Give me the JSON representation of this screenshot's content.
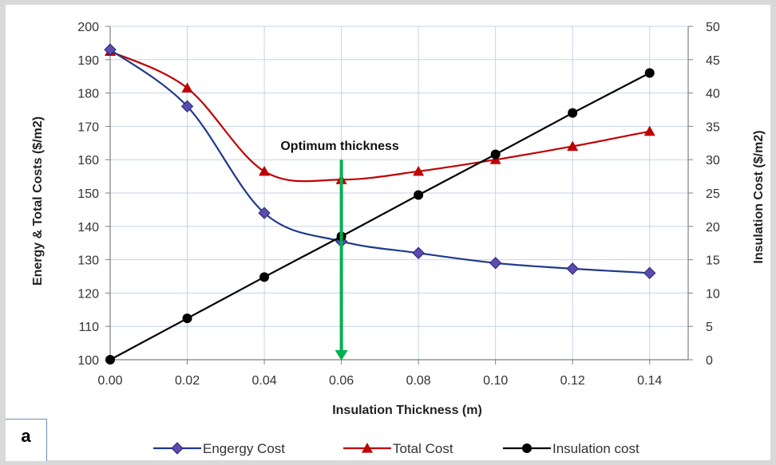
{
  "chart_data": {
    "type": "line",
    "panel_label": "a",
    "xlabel": "Insulation Thickness (m)",
    "ylabel": "Energy & Total Costs ($/m2)",
    "y2label": "Insulation Cost ($/m2)",
    "x": [
      0.0,
      0.02,
      0.04,
      0.06,
      0.08,
      0.1,
      0.12,
      0.14
    ],
    "x_tick_labels": [
      "0.00",
      "0.02",
      "0.04",
      "0.06",
      "0.08",
      "0.10",
      "0.12",
      "0.14"
    ],
    "xlim": [
      0.0,
      0.15
    ],
    "ylim": [
      100,
      200
    ],
    "y_ticks": [
      100,
      110,
      120,
      130,
      140,
      150,
      160,
      170,
      180,
      190,
      200
    ],
    "y2lim": [
      0,
      50
    ],
    "y2_ticks": [
      0,
      5,
      10,
      15,
      20,
      25,
      30,
      35,
      40,
      45,
      50
    ],
    "grid": true,
    "legend_position": "bottom",
    "series": [
      {
        "name": "Engergy Cost",
        "axis": "left",
        "color": "#1f3a8a",
        "marker": "diamond",
        "marker_color": "#5b4bb0",
        "values": [
          193,
          176,
          144,
          135.5,
          132,
          129,
          127.3,
          126
        ]
      },
      {
        "name": "Total Cost",
        "axis": "left",
        "color": "#c00000",
        "marker": "triangle",
        "marker_color": "#c00000",
        "values": [
          192.5,
          181.5,
          156.5,
          154,
          156.5,
          160,
          164,
          168.5
        ]
      },
      {
        "name": "Insulation cost",
        "axis": "right",
        "color": "#000000",
        "marker": "circle",
        "marker_color": "#000000",
        "values": [
          0,
          6.2,
          12.4,
          18.5,
          24.7,
          30.8,
          37,
          43
        ]
      }
    ],
    "annotation": {
      "text": "Optimum thickness",
      "x": 0.06,
      "arrow_from_y": 160,
      "arrow_to_y": 100,
      "color": "#00b050"
    }
  }
}
